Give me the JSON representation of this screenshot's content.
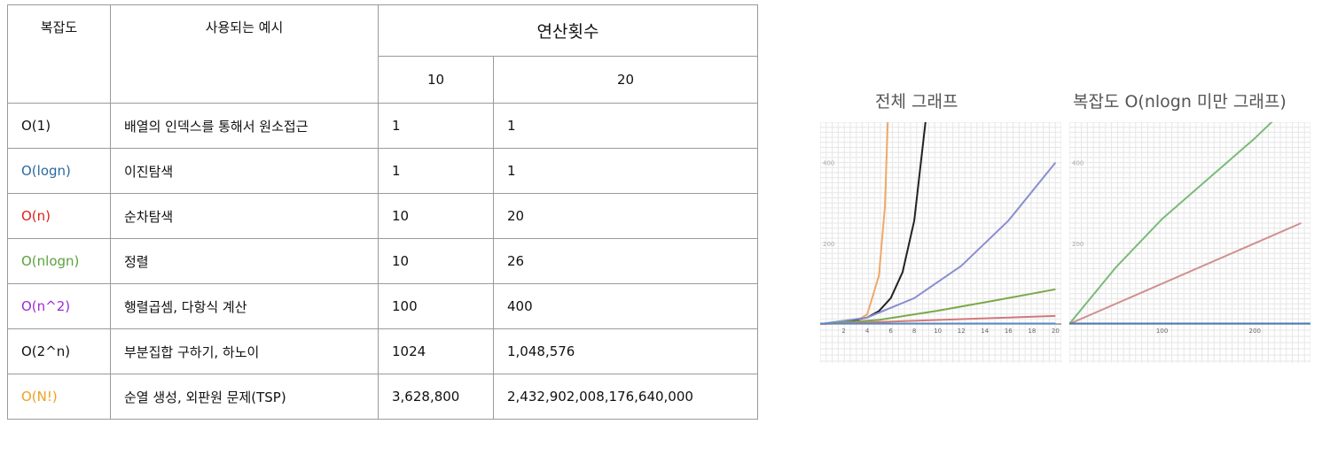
{
  "table": {
    "header": {
      "complexity": "복잡도",
      "example": "사용되는 예시",
      "ops": "연산횟수",
      "n10": "10",
      "n20": "20"
    },
    "rows": [
      {
        "complexity": "O(1)",
        "color": "#111111",
        "example": "배열의 인덱스를 통해서 원소접근",
        "v10": "1",
        "v20": "1"
      },
      {
        "complexity": "O(logn)",
        "color": "#2b6a9e",
        "example": "이진탐색",
        "v10": "1",
        "v20": "1"
      },
      {
        "complexity": "O(n)",
        "color": "#e0201a",
        "example": "순차탐색",
        "v10": "10",
        "v20": "20"
      },
      {
        "complexity": "O(nlogn)",
        "color": "#5aa23c",
        "example": "정렬",
        "v10": "10",
        "v20": "26"
      },
      {
        "complexity": "O(n^2)",
        "color": "#9b2bd4",
        "example": "행렬곱셈, 다항식 계산",
        "v10": "100",
        "v20": "400"
      },
      {
        "complexity": "O(2^n)",
        "color": "#111111",
        "example": "부분집합 구하기, 하노이",
        "v10": "1024",
        "v20": "1,048,576"
      },
      {
        "complexity": "O(N!)",
        "color": "#f0a020",
        "example": "순열 생성, 외판원 문제(TSP)",
        "v10": "3,628,800",
        "v20": "2,432,902,008,176,640,000"
      }
    ]
  },
  "charts": [
    {
      "title": "전체 그래프",
      "chart_data": {
        "type": "line",
        "xlim": [
          0,
          20.5
        ],
        "ylim": [
          0,
          500
        ],
        "xticks": [
          "2",
          "4",
          "6",
          "8",
          "10",
          "12",
          "14",
          "16",
          "18",
          "20"
        ],
        "yticks": [
          "200",
          "400"
        ],
        "series": [
          {
            "color": "#f0a868",
            "x": [
              0,
              1,
              2,
              3,
              4,
              5,
              5.5,
              6
            ],
            "y": [
              0,
              1,
              2,
              6,
              24,
              120,
              290,
              720
            ]
          },
          {
            "color": "#222222",
            "x": [
              0,
              2,
              4,
              5,
              6,
              7,
              8,
              9
            ],
            "y": [
              0,
              4,
              16,
              32,
              64,
              128,
              256,
              512
            ]
          },
          {
            "color": "#8a8ed0",
            "x": [
              0,
              4,
              8,
              12,
              16,
              20
            ],
            "y": [
              0,
              16,
              64,
              144,
              256,
              400
            ]
          },
          {
            "color": "#7aa84a",
            "x": [
              0,
              5,
              10,
              15,
              20
            ],
            "y": [
              0,
              10,
              33,
              59,
              86
            ]
          },
          {
            "color": "#d07a7a",
            "x": [
              0,
              20
            ],
            "y": [
              0,
              20
            ]
          },
          {
            "color": "#5a8ac0",
            "x": [
              0,
              20
            ],
            "y": [
              1,
              1
            ]
          }
        ]
      }
    },
    {
      "title": "복잡도 O(nlogn 미만 그래프)",
      "chart_data": {
        "type": "line",
        "xlim": [
          0,
          260
        ],
        "ylim": [
          0,
          500
        ],
        "xticks": [
          "100",
          "200"
        ],
        "yticks": [
          "200",
          "400"
        ],
        "series": [
          {
            "color": "#7aba7a",
            "x": [
              0,
              50,
              100,
              150,
              200,
              250
            ],
            "y": [
              0,
              140,
              260,
              360,
              460,
              570
            ]
          },
          {
            "color": "#d09090",
            "x": [
              0,
              250
            ],
            "y": [
              0,
              250
            ]
          },
          {
            "color": "#4a7ab0",
            "x": [
              0,
              260
            ],
            "y": [
              1,
              1
            ]
          }
        ]
      }
    }
  ]
}
